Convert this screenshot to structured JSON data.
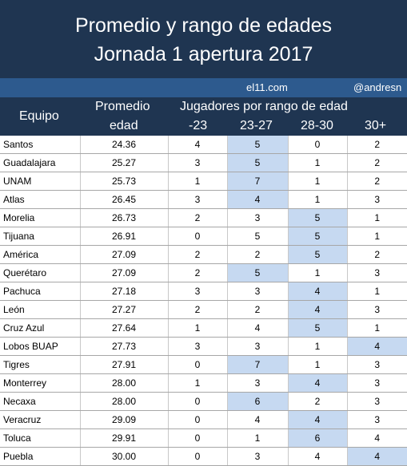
{
  "title": {
    "line1": "Promedio y rango de edades",
    "line2": "Jornada 1 apertura 2017"
  },
  "credits": {
    "site": "el11.com",
    "handle": "@andresn"
  },
  "header": {
    "team": "Equipo",
    "avg_line1": "Promedio",
    "avg_line2": "edad",
    "range_group": "Jugadores por rango de edad",
    "ranges": [
      "-23",
      "23-27",
      "28-30",
      "30+"
    ]
  },
  "colors": {
    "title_bg": "#1f3551",
    "credits_bg": "#2d5a8e",
    "highlight": "#c6d9f1"
  },
  "rows": [
    {
      "team": "Santos",
      "avg": "24.36",
      "r1": "4",
      "r2": "5",
      "r3": "0",
      "r4": "2",
      "hi": 2
    },
    {
      "team": "Guadalajara",
      "avg": "25.27",
      "r1": "3",
      "r2": "5",
      "r3": "1",
      "r4": "2",
      "hi": 2
    },
    {
      "team": "UNAM",
      "avg": "25.73",
      "r1": "1",
      "r2": "7",
      "r3": "1",
      "r4": "2",
      "hi": 2
    },
    {
      "team": "Atlas",
      "avg": "26.45",
      "r1": "3",
      "r2": "4",
      "r3": "1",
      "r4": "3",
      "hi": 2
    },
    {
      "team": "Morelia",
      "avg": "26.73",
      "r1": "2",
      "r2": "3",
      "r3": "5",
      "r4": "1",
      "hi": 3
    },
    {
      "team": "Tijuana",
      "avg": "26.91",
      "r1": "0",
      "r2": "5",
      "r3": "5",
      "r4": "1",
      "hi": 3
    },
    {
      "team": "América",
      "avg": "27.09",
      "r1": "2",
      "r2": "2",
      "r3": "5",
      "r4": "2",
      "hi": 3
    },
    {
      "team": "Querétaro",
      "avg": "27.09",
      "r1": "2",
      "r2": "5",
      "r3": "1",
      "r4": "3",
      "hi": 2
    },
    {
      "team": "Pachuca",
      "avg": "27.18",
      "r1": "3",
      "r2": "3",
      "r3": "4",
      "r4": "1",
      "hi": 3
    },
    {
      "team": "León",
      "avg": "27.27",
      "r1": "2",
      "r2": "2",
      "r3": "4",
      "r4": "3",
      "hi": 3
    },
    {
      "team": "Cruz Azul",
      "avg": "27.64",
      "r1": "1",
      "r2": "4",
      "r3": "5",
      "r4": "1",
      "hi": 3
    },
    {
      "team": "Lobos BUAP",
      "avg": "27.73",
      "r1": "3",
      "r2": "3",
      "r3": "1",
      "r4": "4",
      "hi": 4
    },
    {
      "team": "Tigres",
      "avg": "27.91",
      "r1": "0",
      "r2": "7",
      "r3": "1",
      "r4": "3",
      "hi": 2
    },
    {
      "team": "Monterrey",
      "avg": "28.00",
      "r1": "1",
      "r2": "3",
      "r3": "4",
      "r4": "3",
      "hi": 3
    },
    {
      "team": "Necaxa",
      "avg": "28.00",
      "r1": "0",
      "r2": "6",
      "r3": "2",
      "r4": "3",
      "hi": 2
    },
    {
      "team": "Veracruz",
      "avg": "29.09",
      "r1": "0",
      "r2": "4",
      "r3": "4",
      "r4": "3",
      "hi": 3
    },
    {
      "team": "Toluca",
      "avg": "29.91",
      "r1": "0",
      "r2": "1",
      "r3": "6",
      "r4": "4",
      "hi": 3
    },
    {
      "team": "Puebla",
      "avg": "30.00",
      "r1": "0",
      "r2": "3",
      "r3": "4",
      "r4": "4",
      "hi": 4
    }
  ]
}
